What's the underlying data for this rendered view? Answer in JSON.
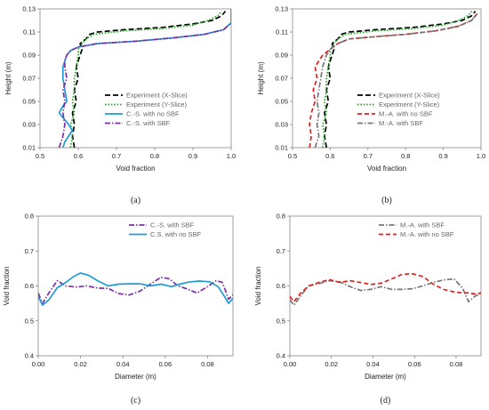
{
  "chart_data": [
    {
      "panel_label": "(a)",
      "type": "line",
      "xlabel": "Void fraction",
      "ylabel": "Height (m)",
      "xlim": [
        0.5,
        1.0
      ],
      "ylim": [
        0.01,
        0.13
      ],
      "xticks": [
        0.5,
        0.6,
        0.7,
        0.8,
        0.9,
        1.0
      ],
      "xtick_labels": [
        "0.5",
        "0.6",
        "0.7",
        "0.8",
        "0.9",
        "1.0"
      ],
      "yticks": [
        0.01,
        0.03,
        0.05,
        0.07,
        0.09,
        0.11,
        0.13
      ],
      "ytick_labels": [
        "0.01",
        "0.03",
        "0.05",
        "0.07",
        "0.09",
        "0.11",
        "0.13"
      ],
      "legend_position": "bottom-right",
      "series": [
        {
          "name": "Experiment (X-Slice)",
          "color": "#000000",
          "dash": "long-dash",
          "x": [
            0.59,
            0.585,
            0.59,
            0.585,
            0.595,
            0.59,
            0.6,
            0.595,
            0.605,
            0.61,
            0.605,
            0.62,
            0.63,
            0.65,
            0.72,
            0.82,
            0.9,
            0.95,
            0.975,
            0.985
          ],
          "y": [
            0.01,
            0.02,
            0.03,
            0.04,
            0.05,
            0.06,
            0.07,
            0.08,
            0.09,
            0.095,
            0.1,
            0.104,
            0.108,
            0.11,
            0.112,
            0.114,
            0.117,
            0.12,
            0.124,
            0.128
          ]
        },
        {
          "name": "Experiment (Y-Slice)",
          "color": "#22aa22",
          "dash": "dotted",
          "x": [
            0.58,
            0.585,
            0.58,
            0.59,
            0.585,
            0.59,
            0.59,
            0.595,
            0.6,
            0.6,
            0.61,
            0.62,
            0.64,
            0.72,
            0.82,
            0.9,
            0.94,
            0.965,
            0.975
          ],
          "y": [
            0.01,
            0.02,
            0.03,
            0.04,
            0.05,
            0.06,
            0.07,
            0.08,
            0.09,
            0.095,
            0.1,
            0.104,
            0.108,
            0.111,
            0.113,
            0.116,
            0.12,
            0.124,
            0.128
          ]
        },
        {
          "name": "C.-S. with no SBF",
          "color": "#1f9bd7",
          "dash": "solid",
          "x": [
            0.56,
            0.565,
            0.575,
            0.585,
            0.575,
            0.565,
            0.55,
            0.56,
            0.57,
            0.565,
            0.56,
            0.56,
            0.565,
            0.57,
            0.58,
            0.6,
            0.65,
            0.75,
            0.85,
            0.93,
            0.98,
            1.0,
            1.0
          ],
          "y": [
            0.01,
            0.015,
            0.02,
            0.025,
            0.03,
            0.034,
            0.04,
            0.046,
            0.05,
            0.06,
            0.07,
            0.08,
            0.085,
            0.09,
            0.094,
            0.097,
            0.1,
            0.102,
            0.105,
            0.108,
            0.112,
            0.118,
            0.13
          ]
        },
        {
          "name": "C.-S. with SBF",
          "color": "#7b2fa8",
          "dash": "dash-dot",
          "x": [
            0.55,
            0.56,
            0.565,
            0.56,
            0.565,
            0.56,
            0.57,
            0.565,
            0.565,
            0.57,
            0.58,
            0.6,
            0.65,
            0.75,
            0.85,
            0.93,
            0.98,
            1.0
          ],
          "y": [
            0.01,
            0.02,
            0.03,
            0.04,
            0.05,
            0.06,
            0.07,
            0.08,
            0.085,
            0.09,
            0.094,
            0.097,
            0.1,
            0.102,
            0.105,
            0.108,
            0.112,
            0.118
          ]
        }
      ]
    },
    {
      "panel_label": "(b)",
      "type": "line",
      "xlabel": "Void fraction",
      "ylabel": "Height (m)",
      "xlim": [
        0.5,
        1.0
      ],
      "ylim": [
        0.01,
        0.13
      ],
      "xticks": [
        0.5,
        0.6,
        0.7,
        0.8,
        0.9,
        1.0
      ],
      "xtick_labels": [
        "0.5",
        "0.6",
        "0.7",
        "0.8",
        "0.9",
        "1.0"
      ],
      "yticks": [
        0.01,
        0.03,
        0.05,
        0.07,
        0.09,
        0.11,
        0.13
      ],
      "ytick_labels": [
        "0.01",
        "0.03",
        "0.05",
        "0.07",
        "0.09",
        "0.11",
        "0.13"
      ],
      "legend_position": "bottom-right",
      "series": [
        {
          "name": "Experiment (X-Slice)",
          "color": "#000000",
          "dash": "long-dash",
          "x": [
            0.59,
            0.585,
            0.59,
            0.585,
            0.595,
            0.59,
            0.6,
            0.595,
            0.605,
            0.61,
            0.605,
            0.62,
            0.63,
            0.65,
            0.72,
            0.82,
            0.9,
            0.95,
            0.975,
            0.985
          ],
          "y": [
            0.01,
            0.02,
            0.03,
            0.04,
            0.05,
            0.06,
            0.07,
            0.08,
            0.09,
            0.095,
            0.1,
            0.104,
            0.108,
            0.11,
            0.112,
            0.114,
            0.117,
            0.12,
            0.124,
            0.128
          ]
        },
        {
          "name": "Experiment (Y-Slice)",
          "color": "#22aa22",
          "dash": "dotted",
          "x": [
            0.58,
            0.585,
            0.58,
            0.59,
            0.585,
            0.59,
            0.59,
            0.595,
            0.6,
            0.6,
            0.61,
            0.62,
            0.64,
            0.72,
            0.82,
            0.9,
            0.94,
            0.965,
            0.975
          ],
          "y": [
            0.01,
            0.02,
            0.03,
            0.04,
            0.05,
            0.06,
            0.07,
            0.08,
            0.09,
            0.095,
            0.1,
            0.104,
            0.108,
            0.111,
            0.113,
            0.116,
            0.12,
            0.124,
            0.128
          ]
        },
        {
          "name": "M.-A. with no SBF",
          "color": "#e02020",
          "dash": "dashed",
          "x": [
            0.545,
            0.55,
            0.545,
            0.55,
            0.56,
            0.555,
            0.565,
            0.56,
            0.57,
            0.58,
            0.6,
            0.62,
            0.65,
            0.72,
            0.8,
            0.88,
            0.94,
            0.975,
            0.99
          ],
          "y": [
            0.01,
            0.02,
            0.03,
            0.04,
            0.05,
            0.06,
            0.07,
            0.08,
            0.085,
            0.09,
            0.095,
            0.1,
            0.104,
            0.106,
            0.108,
            0.111,
            0.115,
            0.12,
            0.126
          ]
        },
        {
          "name": "M.-A. with SBF",
          "color": "#777777",
          "dash": "dash-dot",
          "x": [
            0.56,
            0.57,
            0.565,
            0.57,
            0.565,
            0.57,
            0.575,
            0.58,
            0.59,
            0.6,
            0.62,
            0.65,
            0.72,
            0.8,
            0.88,
            0.94,
            0.975,
            0.99
          ],
          "y": [
            0.01,
            0.02,
            0.03,
            0.04,
            0.05,
            0.06,
            0.07,
            0.08,
            0.09,
            0.095,
            0.1,
            0.104,
            0.106,
            0.108,
            0.111,
            0.115,
            0.12,
            0.126
          ]
        }
      ]
    },
    {
      "panel_label": "(c)",
      "type": "line",
      "xlabel": "Diameter (m)",
      "ylabel": "Void fraction",
      "xlim": [
        0.0,
        0.092
      ],
      "ylim": [
        0.4,
        0.8
      ],
      "xticks": [
        0.0,
        0.02,
        0.04,
        0.06,
        0.08
      ],
      "xtick_labels": [
        "0.00",
        "0.02",
        "0.04",
        "0.06",
        "0.08"
      ],
      "yticks": [
        0.4,
        0.5,
        0.6,
        0.7,
        0.8
      ],
      "ytick_labels": [
        "0.4",
        "0.5",
        "0.6",
        "0.7",
        "0.8"
      ],
      "legend_position": "top-right",
      "series": [
        {
          "name": "C.-S. with SBF",
          "color": "#7b2fa8",
          "dash": "dash-dot",
          "x": [
            0.0,
            0.002,
            0.005,
            0.009,
            0.013,
            0.018,
            0.023,
            0.028,
            0.033,
            0.038,
            0.043,
            0.048,
            0.053,
            0.058,
            0.062,
            0.066,
            0.07,
            0.075,
            0.08,
            0.084,
            0.087,
            0.09,
            0.092
          ],
          "y": [
            0.58,
            0.55,
            0.58,
            0.615,
            0.6,
            0.597,
            0.6,
            0.594,
            0.593,
            0.578,
            0.574,
            0.585,
            0.605,
            0.625,
            0.62,
            0.6,
            0.592,
            0.58,
            0.598,
            0.615,
            0.61,
            0.562,
            0.575
          ]
        },
        {
          "name": "C.S. with no SBF",
          "color": "#1f9bd7",
          "dash": "solid",
          "x": [
            0.0,
            0.002,
            0.005,
            0.009,
            0.013,
            0.017,
            0.02,
            0.024,
            0.028,
            0.033,
            0.038,
            0.043,
            0.048,
            0.053,
            0.058,
            0.063,
            0.067,
            0.071,
            0.076,
            0.081,
            0.085,
            0.088,
            0.09,
            0.092
          ],
          "y": [
            0.57,
            0.545,
            0.56,
            0.595,
            0.61,
            0.628,
            0.637,
            0.63,
            0.615,
            0.6,
            0.605,
            0.606,
            0.606,
            0.6,
            0.605,
            0.598,
            0.605,
            0.611,
            0.614,
            0.612,
            0.598,
            0.57,
            0.55,
            0.565
          ]
        }
      ]
    },
    {
      "panel_label": "(d)",
      "type": "line",
      "xlabel": "Diameter (m)",
      "ylabel": "Void fraction",
      "xlim": [
        0.0,
        0.092
      ],
      "ylim": [
        0.4,
        0.8
      ],
      "xticks": [
        0.0,
        0.02,
        0.04,
        0.06,
        0.08
      ],
      "xtick_labels": [
        "0.00",
        "0.02",
        "0.04",
        "0.06",
        "0.08"
      ],
      "yticks": [
        0.4,
        0.5,
        0.6,
        0.7,
        0.8
      ],
      "ytick_labels": [
        "0.4",
        "0.5",
        "0.6",
        "0.7",
        "0.8"
      ],
      "legend_position": "top-right",
      "series": [
        {
          "name": "M.-A. with SBF",
          "color": "#777777",
          "dash": "dash-dot",
          "x": [
            0.0,
            0.002,
            0.005,
            0.009,
            0.014,
            0.019,
            0.024,
            0.029,
            0.034,
            0.039,
            0.044,
            0.049,
            0.054,
            0.059,
            0.064,
            0.069,
            0.074,
            0.079,
            0.083,
            0.086,
            0.089,
            0.092
          ],
          "y": [
            0.56,
            0.545,
            0.57,
            0.6,
            0.607,
            0.615,
            0.612,
            0.598,
            0.587,
            0.59,
            0.598,
            0.59,
            0.59,
            0.592,
            0.6,
            0.61,
            0.617,
            0.62,
            0.595,
            0.555,
            0.57,
            0.58
          ]
        },
        {
          "name": "M.-A. with no SBF",
          "color": "#e02020",
          "dash": "dashed",
          "x": [
            0.0,
            0.002,
            0.005,
            0.009,
            0.014,
            0.019,
            0.024,
            0.029,
            0.034,
            0.039,
            0.044,
            0.049,
            0.054,
            0.059,
            0.064,
            0.069,
            0.074,
            0.079,
            0.083,
            0.086,
            0.089,
            0.092
          ],
          "y": [
            0.57,
            0.555,
            0.578,
            0.6,
            0.61,
            0.618,
            0.61,
            0.615,
            0.61,
            0.604,
            0.608,
            0.62,
            0.633,
            0.635,
            0.627,
            0.605,
            0.59,
            0.583,
            0.58,
            0.58,
            0.577,
            0.58
          ]
        }
      ]
    }
  ]
}
